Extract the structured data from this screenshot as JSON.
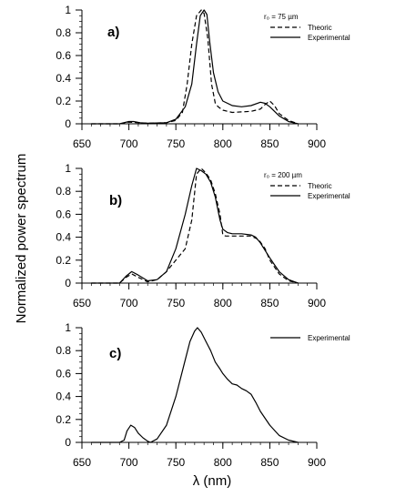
{
  "figure": {
    "ylabel": "Normalized power spectrum",
    "xlabel": "λ (nm)"
  },
  "chart_data": [
    {
      "type": "line",
      "panel_label": "a)",
      "annotation": "r₀ = 75 µm",
      "xlim": [
        650,
        900
      ],
      "ylim": [
        0,
        1
      ],
      "xticks": [
        "650",
        "700",
        "750",
        "800",
        "850",
        "900"
      ],
      "yticks": [
        "0",
        "0.2",
        "0.4",
        "0.6",
        "0.8",
        "1"
      ],
      "legend_position": "top-right",
      "series": [
        {
          "name": "Theoric",
          "style": "dashed",
          "x": [
            660,
            690,
            700,
            710,
            720,
            740,
            750,
            757,
            762,
            767,
            772,
            777,
            780,
            784,
            788,
            792,
            795,
            800,
            810,
            830,
            840,
            845,
            850,
            855,
            860,
            870,
            880
          ],
          "y": [
            0,
            0,
            0.015,
            0.01,
            0.005,
            0.01,
            0.03,
            0.1,
            0.35,
            0.7,
            0.95,
            1.0,
            0.97,
            0.75,
            0.35,
            0.18,
            0.15,
            0.12,
            0.1,
            0.11,
            0.13,
            0.17,
            0.2,
            0.16,
            0.09,
            0.03,
            0
          ]
        },
        {
          "name": "Experimental",
          "style": "solid",
          "x": [
            660,
            690,
            700,
            705,
            712,
            720,
            740,
            750,
            760,
            767,
            772,
            776,
            780,
            783,
            786,
            790,
            795,
            800,
            810,
            820,
            830,
            840,
            845,
            850,
            860,
            870,
            880
          ],
          "y": [
            0,
            0,
            0.02,
            0.02,
            0.01,
            0.005,
            0.01,
            0.04,
            0.15,
            0.35,
            0.7,
            0.95,
            1.0,
            0.96,
            0.72,
            0.45,
            0.28,
            0.2,
            0.16,
            0.15,
            0.16,
            0.19,
            0.18,
            0.15,
            0.07,
            0.02,
            0
          ]
        }
      ]
    },
    {
      "type": "line",
      "panel_label": "b)",
      "annotation": "r₀ = 200 µm",
      "xlim": [
        650,
        900
      ],
      "ylim": [
        0,
        1
      ],
      "xticks": [
        "650",
        "700",
        "750",
        "800",
        "850",
        "900"
      ],
      "yticks": [
        "0",
        "0.2",
        "0.4",
        "0.6",
        "0.8",
        "1"
      ],
      "legend_position": "top-right",
      "series": [
        {
          "name": "Theoric",
          "style": "dashed",
          "x": [
            660,
            690,
            697,
            703,
            710,
            720,
            730,
            740,
            750,
            760,
            767,
            772,
            777,
            782,
            787,
            792,
            797,
            800,
            803,
            810,
            820,
            830,
            838,
            845,
            850,
            860,
            870,
            880
          ],
          "y": [
            0,
            0,
            0.05,
            0.08,
            0.05,
            0.01,
            0.03,
            0.1,
            0.2,
            0.3,
            0.55,
            0.95,
            1.0,
            0.96,
            0.9,
            0.78,
            0.6,
            0.42,
            0.41,
            0.41,
            0.41,
            0.41,
            0.38,
            0.3,
            0.2,
            0.08,
            0.02,
            0
          ]
        },
        {
          "name": "Experimental",
          "style": "solid",
          "x": [
            660,
            690,
            697,
            703,
            710,
            720,
            730,
            740,
            750,
            760,
            767,
            772,
            777,
            782,
            787,
            792,
            797,
            800,
            805,
            810,
            820,
            830,
            835,
            840,
            850,
            860,
            870,
            880
          ],
          "y": [
            0,
            0,
            0.06,
            0.1,
            0.07,
            0.02,
            0.03,
            0.1,
            0.3,
            0.6,
            0.85,
            1.0,
            0.98,
            0.95,
            0.88,
            0.75,
            0.55,
            0.47,
            0.44,
            0.43,
            0.43,
            0.42,
            0.4,
            0.35,
            0.22,
            0.1,
            0.03,
            0
          ]
        }
      ]
    },
    {
      "type": "line",
      "panel_label": "c)",
      "xlim": [
        650,
        900
      ],
      "ylim": [
        0,
        1
      ],
      "xticks": [
        "650",
        "700",
        "750",
        "800",
        "850",
        "900"
      ],
      "yticks": [
        "0",
        "0.2",
        "0.4",
        "0.6",
        "0.8",
        "1"
      ],
      "legend_position": "top-right",
      "series": [
        {
          "name": "Experimental",
          "style": "solid",
          "x": [
            660,
            690,
            695,
            698,
            702,
            706,
            710,
            715,
            720,
            723,
            730,
            740,
            750,
            760,
            765,
            770,
            773,
            777,
            782,
            787,
            792,
            797,
            800,
            805,
            810,
            815,
            820,
            825,
            830,
            835,
            840,
            850,
            860,
            870,
            880
          ],
          "y": [
            0,
            0,
            0.02,
            0.1,
            0.15,
            0.13,
            0.08,
            0.04,
            0.01,
            0.0,
            0.03,
            0.15,
            0.4,
            0.72,
            0.88,
            0.97,
            1.0,
            0.96,
            0.88,
            0.8,
            0.7,
            0.64,
            0.6,
            0.55,
            0.51,
            0.5,
            0.47,
            0.45,
            0.42,
            0.35,
            0.27,
            0.15,
            0.06,
            0.02,
            0
          ]
        }
      ]
    }
  ]
}
